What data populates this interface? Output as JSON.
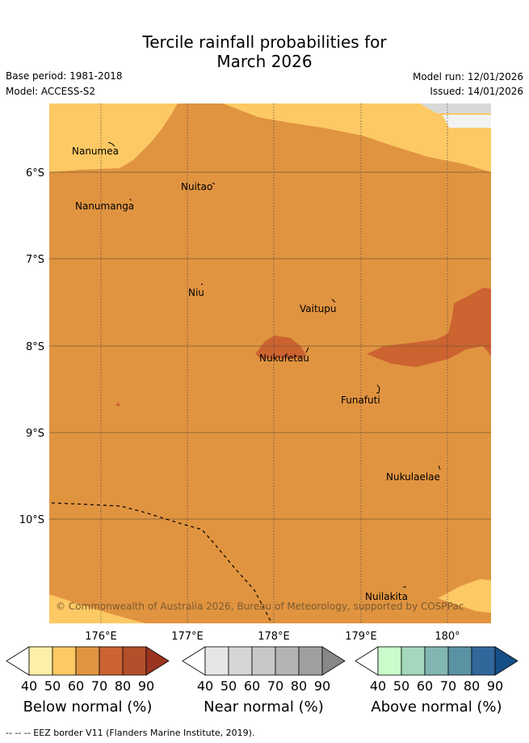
{
  "title_line1": "Tercile rainfall probabilities for",
  "title_line2": "March 2026",
  "base_period": "Base period: 1981-2018",
  "model": "Model: ACCESS-S2",
  "model_run": "Model run: 12/01/2026",
  "issued": "Issued: 14/01/2026",
  "copyright": "© Commonwealth of Australia 2026, Bureau of Meteorology, supported by COSPPac",
  "lat_labels": [
    "6°S",
    "7°S",
    "8°S",
    "9°S",
    "10°S"
  ],
  "lon_labels": [
    "176°E",
    "177°E",
    "178°E",
    "179°E",
    "180°"
  ],
  "places": [
    "Nanumea",
    "Nuitao",
    "Nanumanga",
    "Niu",
    "Vaitupu",
    "Nukufetau",
    "Funafuti",
    "Nukulaelae",
    "Nuilakita"
  ],
  "legends": [
    {
      "title": "Below normal (%)",
      "ticks": [
        "40",
        "50",
        "60",
        "70",
        "80",
        "90"
      ],
      "colors": [
        "#ffffff",
        "#fff0a8",
        "#fdc964",
        "#e19440",
        "#cc6331",
        "#b34f2a",
        "#9a3420"
      ]
    },
    {
      "title": "Near normal (%)",
      "ticks": [
        "40",
        "50",
        "60",
        "70",
        "80",
        "90"
      ],
      "colors": [
        "#ffffff",
        "#e6e6e6",
        "#d6d6d6",
        "#c8c8c8",
        "#b4b4b4",
        "#a0a0a0",
        "#888888"
      ]
    },
    {
      "title": "Above normal (%)",
      "ticks": [
        "40",
        "50",
        "60",
        "70",
        "80",
        "90"
      ],
      "colors": [
        "#ffffff",
        "#c8fcca",
        "#a3d8bc",
        "#82b6b2",
        "#5a92a4",
        "#32679c",
        "#164f88"
      ]
    }
  ],
  "footnote": "-- -- -- EEZ border V11 (Flanders Marine Institute, 2019)."
}
